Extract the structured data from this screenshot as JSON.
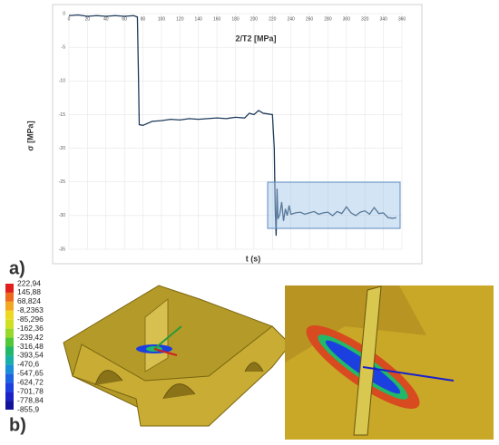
{
  "chart_data": {
    "type": "line",
    "title": "2/T2 [MPa]",
    "x_label": "t (s)",
    "y_label": "σ [MPa]",
    "x": [
      0,
      10,
      20,
      30,
      40,
      50,
      60,
      70,
      74,
      75,
      76,
      80,
      90,
      100,
      110,
      120,
      130,
      140,
      150,
      160,
      170,
      180,
      190,
      195,
      200,
      205,
      210,
      215,
      220,
      222,
      223,
      224,
      225,
      226,
      228,
      230,
      232,
      234,
      236,
      238,
      240,
      245,
      250,
      255,
      260,
      265,
      270,
      275,
      280,
      285,
      290,
      295,
      300,
      305,
      310,
      315,
      320,
      325,
      330,
      335,
      340,
      345,
      350,
      354
    ],
    "series": [
      {
        "color": "#1f3b5a",
        "values": [
          -0.3,
          -0.2,
          -0.4,
          -0.3,
          -0.4,
          -0.3,
          -0.4,
          -0.3,
          -0.5,
          -8,
          -16.5,
          -16.6,
          -16.0,
          -15.9,
          -15.7,
          -15.8,
          -15.6,
          -15.7,
          -15.6,
          -15.5,
          -15.6,
          -15.4,
          -15.5,
          -14.8,
          -15.0,
          -14.4,
          -14.8,
          -14.9,
          -15.0,
          -20,
          -29,
          -33,
          -26,
          -30.5,
          -29.8,
          -28,
          -30.8,
          -29.0,
          -30.0,
          -28.5,
          -29.8,
          -29.6,
          -29.5,
          -29.8,
          -29.6,
          -29.4,
          -29.8,
          -29.6,
          -29.5,
          -30.0,
          -29.4,
          -29.7,
          -28.7,
          -29.6,
          -30.0,
          -29.5,
          -29.3,
          -29.8,
          -28.8,
          -29.7,
          -29.6,
          -30.3,
          -30.4,
          -30.3
        ]
      }
    ],
    "xlim": [
      0,
      360
    ],
    "xticks": [
      0,
      20,
      40,
      60,
      80,
      100,
      120,
      140,
      160,
      180,
      200,
      220,
      240,
      260,
      280,
      300,
      320,
      340,
      360
    ],
    "ylim": [
      -35,
      0
    ],
    "yticks": [
      0,
      -5,
      -10,
      -15,
      -20,
      -25,
      -30,
      -35
    ],
    "grid": true
  },
  "panel_labels": [
    "a)",
    "b)"
  ],
  "colorbar": {
    "labels": [
      "222,94",
      "145,88",
      "68,824",
      "-8,2363",
      "-85,296",
      "-162,36",
      "-239,42",
      "-316,48",
      "-393,54",
      "-470,6",
      "-547,65",
      "-624,72",
      "-701,78",
      "-778,84",
      "-855,9"
    ],
    "colors": [
      "#e0201c",
      "#ee6a1e",
      "#f3a823",
      "#efd822",
      "#cfe024",
      "#98d82a",
      "#52c838",
      "#22b86a",
      "#18b0a6",
      "#1a8ed8",
      "#1c64e2",
      "#1c40e0",
      "#1a22c8",
      "#12129a"
    ]
  }
}
